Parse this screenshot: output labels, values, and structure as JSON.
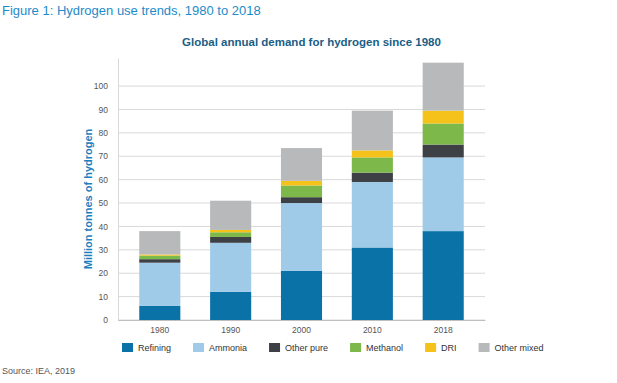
{
  "chart_data": {
    "type": "bar",
    "stacked": true,
    "title": "Figure 1: Hydrogen use trends, 1980 to 2018",
    "subtitle": "Global annual demand for hydrogen since 1980",
    "y_label": "Million tonnes of hydrogen",
    "source": "Source: IEA, 2019",
    "categories": [
      "1980",
      "1990",
      "2000",
      "2010",
      "2018"
    ],
    "series": [
      {
        "name": "Refining",
        "color": "#0b72a8",
        "values": [
          6,
          12,
          21,
          31,
          38
        ]
      },
      {
        "name": "Ammonia",
        "color": "#9fcbe8",
        "values": [
          18.5,
          21,
          29,
          28,
          31.5
        ]
      },
      {
        "name": "Other pure",
        "color": "#3d4145",
        "values": [
          1.5,
          2.5,
          2.5,
          4,
          5.5
        ]
      },
      {
        "name": "Methanol",
        "color": "#7cb84a",
        "values": [
          1.5,
          2,
          5,
          6.5,
          9
        ]
      },
      {
        "name": "DRI",
        "color": "#f4c21b",
        "values": [
          0.5,
          1,
          2,
          3,
          5.5
        ]
      },
      {
        "name": "Other mixed",
        "color": "#b8b9bb",
        "values": [
          10,
          12.5,
          14,
          17,
          20.5
        ]
      }
    ],
    "ylim": [
      0,
      112
    ],
    "yticks": [
      0,
      10,
      20,
      30,
      40,
      50,
      60,
      70,
      80,
      90,
      100
    ],
    "grid": true,
    "legend": "bottom"
  }
}
